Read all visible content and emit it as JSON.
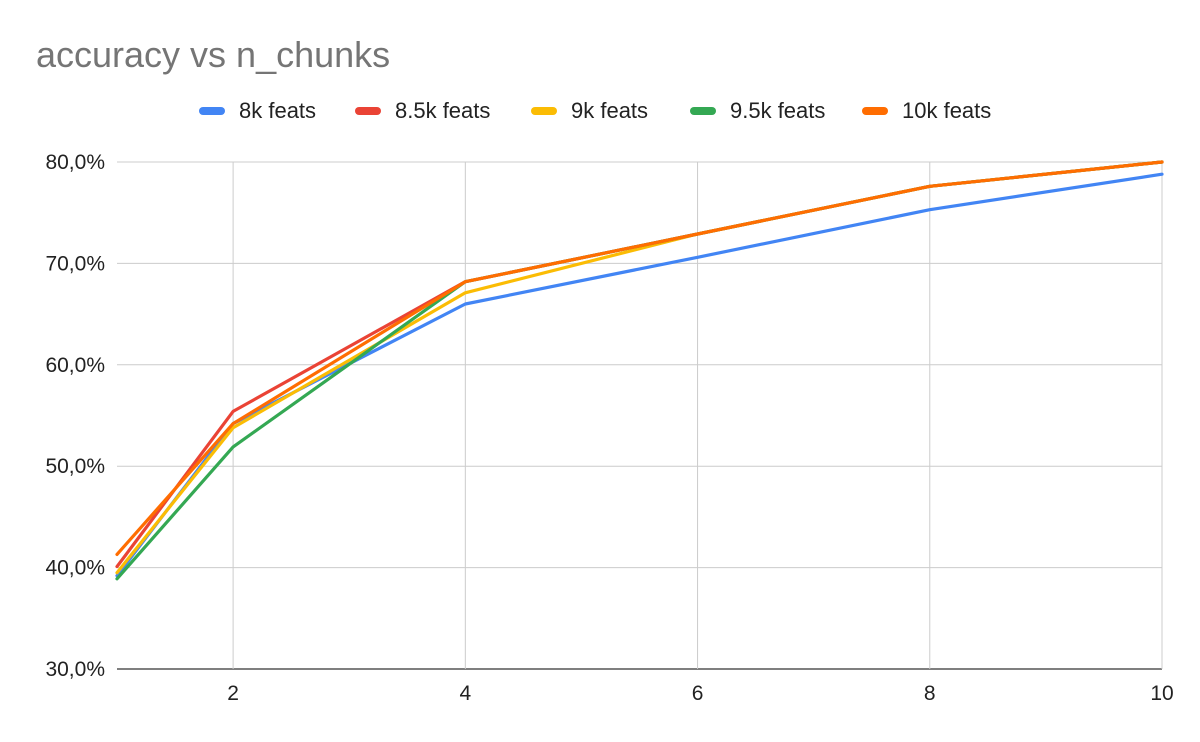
{
  "chart_data": {
    "type": "line",
    "title": "accuracy vs n_chunks",
    "xlabel": "",
    "ylabel": "",
    "xlim": [
      1,
      10
    ],
    "ylim": [
      30,
      80
    ],
    "x_ticks": [
      2,
      4,
      6,
      8,
      10
    ],
    "x_tick_labels": [
      "2",
      "4",
      "6",
      "8",
      "10"
    ],
    "y_ticks": [
      30,
      40,
      50,
      60,
      70,
      80
    ],
    "y_tick_labels": [
      "30,0%",
      "40,0%",
      "50,0%",
      "60,0%",
      "70,0%",
      "80,0%"
    ],
    "grid": true,
    "legend_position": "top",
    "x": [
      1,
      2,
      4,
      6,
      8,
      10
    ],
    "series": [
      {
        "name": "8k feats",
        "color": "#4285f4",
        "values": [
          39.2,
          54.2,
          66.0,
          70.6,
          75.3,
          78.8
        ]
      },
      {
        "name": "8.5k feats",
        "color": "#ea4335",
        "values": [
          40.1,
          55.4,
          68.2,
          72.9,
          77.6,
          80.0
        ]
      },
      {
        "name": "9k feats",
        "color": "#fbbc04",
        "values": [
          39.5,
          53.8,
          67.1,
          72.9,
          77.6,
          80.0
        ]
      },
      {
        "name": "9.5k feats",
        "color": "#34a853",
        "values": [
          38.9,
          51.9,
          68.2,
          72.9,
          77.6,
          80.0
        ]
      },
      {
        "name": "10k feats",
        "color": "#ff6d01",
        "values": [
          41.3,
          54.2,
          68.2,
          72.9,
          77.6,
          80.0
        ]
      }
    ]
  }
}
